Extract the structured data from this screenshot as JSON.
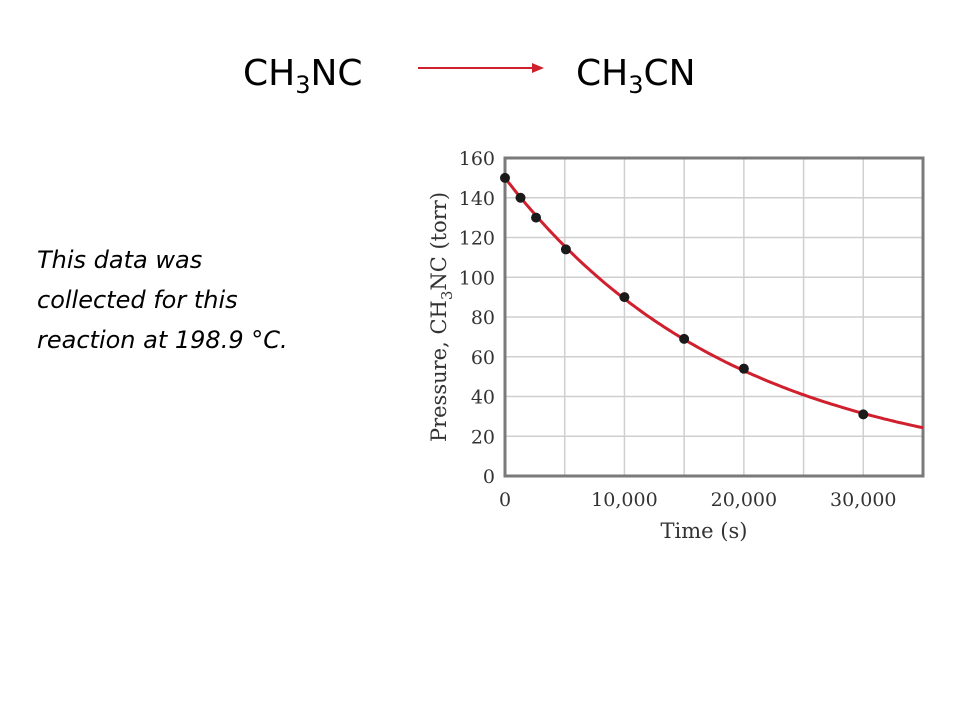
{
  "reaction": {
    "reactant": {
      "base": "CH",
      "sub": "3",
      "tail": "NC"
    },
    "product": {
      "base": "CH",
      "sub": "3",
      "tail": "CN"
    },
    "arrow_color": "#d0202e"
  },
  "note": {
    "line1": "This data was",
    "line2": "collected for this",
    "line3": "reaction at 198.9 °C."
  },
  "chart_data": {
    "type": "scatter",
    "x": [
      0,
      1300,
      2600,
      5100,
      10000,
      15000,
      20000,
      30000
    ],
    "y": [
      150,
      140,
      130,
      114,
      90,
      69,
      54,
      31
    ],
    "fit_curve": {
      "type": "exponential",
      "color": "#d0202e"
    },
    "point_color": "#1a1a1a",
    "xlabel": "Time (s)",
    "ylabel": {
      "before": "Pressure, CH",
      "sub": "3",
      "after": "NC (torr)"
    },
    "xlim": [
      0,
      35000
    ],
    "ylim": [
      0,
      160
    ],
    "xticks": [
      0,
      10000,
      20000,
      30000
    ],
    "xtick_labels": [
      "0",
      "10,000",
      "20,000",
      "30,000"
    ],
    "yticks": [
      0,
      20,
      40,
      60,
      80,
      100,
      120,
      140,
      160
    ],
    "ytick_labels": [
      "0",
      "20",
      "40",
      "60",
      "80",
      "100",
      "120",
      "140",
      "160"
    ],
    "x_minor_grid_step": 5000,
    "grid": true
  }
}
